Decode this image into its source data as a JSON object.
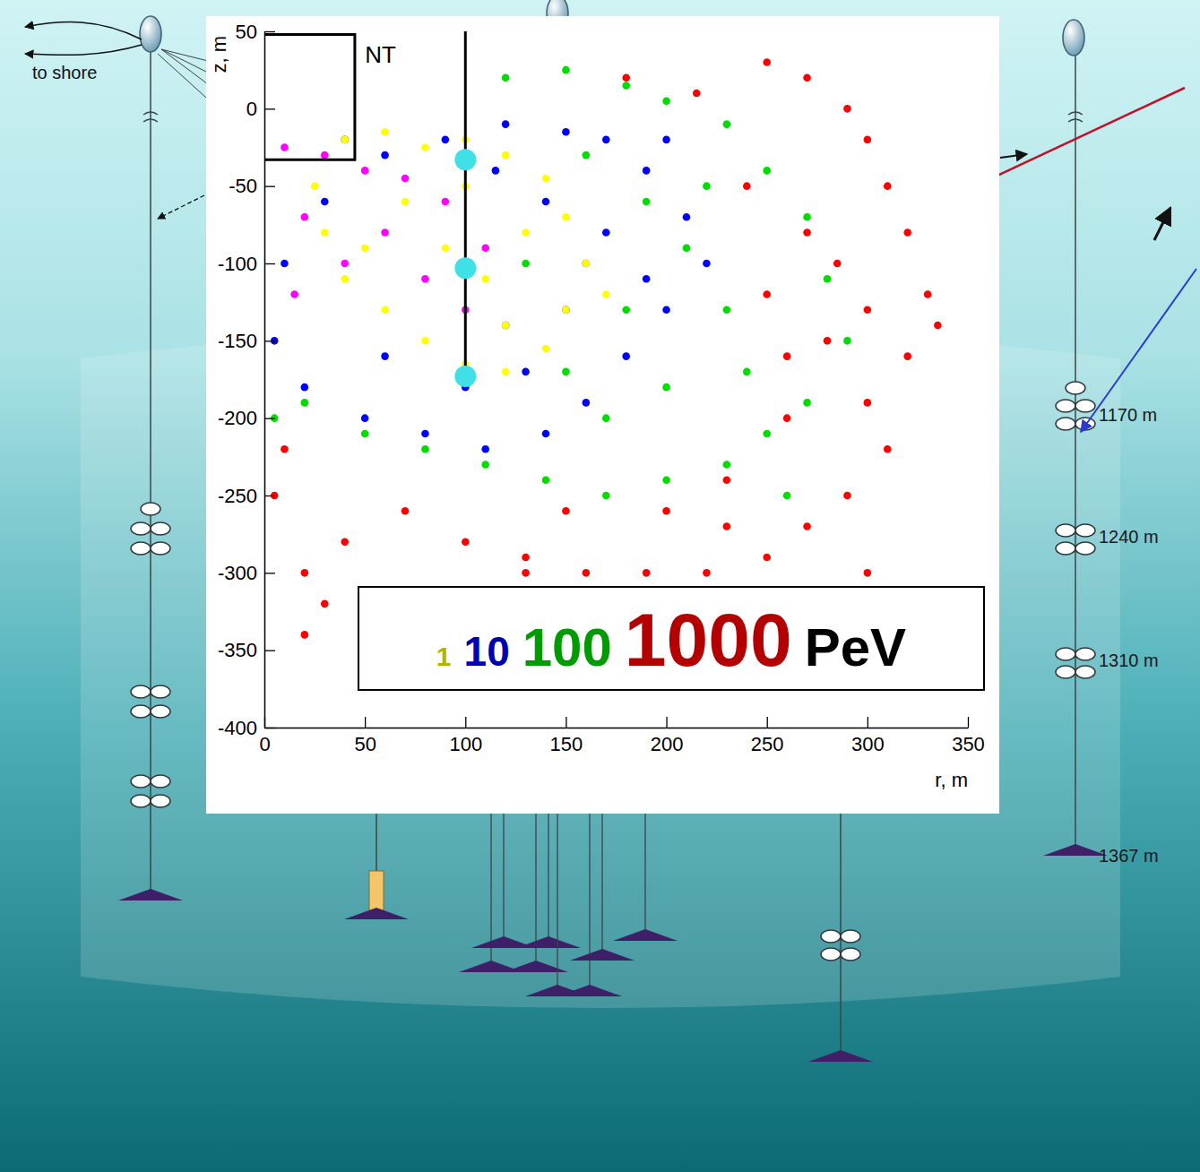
{
  "chart_data": {
    "type": "scatter",
    "xlabel": "r, m",
    "ylabel": "z, m",
    "xlim": [
      0,
      350
    ],
    "ylim": [
      -400,
      50
    ],
    "xticks": [
      0,
      50,
      100,
      150,
      200,
      250,
      300,
      350
    ],
    "yticks": [
      -400,
      -350,
      -300,
      -250,
      -200,
      -150,
      -100,
      -50,
      0,
      50
    ],
    "grid": false,
    "legend": "bottom",
    "annotations": [
      {
        "text": "NT",
        "x": 50,
        "y": 35
      },
      {
        "text": "PeV"
      }
    ],
    "series": [
      {
        "name": "1",
        "color": "#ffff00",
        "type": "scatter",
        "marker": "circle",
        "x": [
          40,
          60,
          80,
          100,
          120,
          140,
          150,
          160,
          150,
          140,
          120,
          100,
          80,
          60,
          40,
          30,
          25,
          70,
          90,
          110,
          130,
          50,
          100,
          120,
          170
        ],
        "y": [
          -20,
          -15,
          -25,
          -20,
          -30,
          -45,
          -70,
          -100,
          -130,
          -155,
          -170,
          -165,
          -150,
          -130,
          -110,
          -80,
          -50,
          -60,
          -90,
          -110,
          -80,
          -90,
          -50,
          -140,
          -120
        ]
      },
      {
        "name": "10",
        "color": "#0000ff",
        "type": "scatter",
        "marker": "circle",
        "x": [
          60,
          90,
          120,
          150,
          170,
          190,
          210,
          220,
          200,
          180,
          160,
          140,
          110,
          80,
          50,
          20,
          5,
          10,
          30,
          40,
          140,
          160,
          120,
          170,
          190,
          100,
          60,
          130,
          150,
          200,
          115
        ],
        "y": [
          -30,
          -20,
          -10,
          -15,
          -20,
          -40,
          -70,
          -100,
          -130,
          -160,
          -190,
          -210,
          -220,
          -210,
          -200,
          -180,
          -150,
          -100,
          -60,
          -20,
          -60,
          -100,
          -140,
          -80,
          -110,
          -180,
          -160,
          -170,
          -130,
          -20,
          -40
        ]
      },
      {
        "name": "100",
        "color": "#00dd00",
        "type": "scatter",
        "marker": "circle",
        "x": [
          120,
          150,
          180,
          200,
          230,
          250,
          270,
          280,
          290,
          270,
          250,
          230,
          200,
          170,
          140,
          110,
          80,
          50,
          20,
          5,
          160,
          190,
          210,
          230,
          180,
          150,
          200,
          240,
          130,
          220,
          170,
          260
        ],
        "y": [
          20,
          25,
          15,
          5,
          -10,
          -40,
          -70,
          -110,
          -150,
          -190,
          -210,
          -230,
          -240,
          -250,
          -240,
          -230,
          -220,
          -210,
          -190,
          -200,
          -30,
          -60,
          -90,
          -130,
          -130,
          -170,
          -180,
          -170,
          -100,
          -50,
          -200,
          -250
        ]
      },
      {
        "name": "1000",
        "color": "#ff0000",
        "type": "scatter",
        "marker": "circle",
        "x": [
          250,
          270,
          290,
          300,
          310,
          320,
          330,
          335,
          320,
          300,
          310,
          290,
          270,
          250,
          220,
          190,
          160,
          130,
          100,
          70,
          40,
          20,
          5,
          30,
          130,
          230,
          260,
          280,
          250,
          270,
          240,
          285,
          300,
          260,
          230,
          200,
          150,
          300,
          10,
          20,
          180,
          215
        ],
        "y": [
          30,
          20,
          0,
          -20,
          -50,
          -80,
          -120,
          -140,
          -160,
          -190,
          -220,
          -250,
          -270,
          -290,
          -300,
          -300,
          -300,
          -290,
          -280,
          -260,
          -280,
          -300,
          -250,
          -320,
          -300,
          -240,
          -200,
          -150,
          -120,
          -80,
          -50,
          -100,
          -130,
          -160,
          -270,
          -260,
          -260,
          -300,
          -220,
          -340,
          20,
          10
        ]
      },
      {
        "color": "#ff00ff",
        "type": "scatter",
        "marker": "circle",
        "x": [
          10,
          30,
          50,
          20,
          40,
          60,
          80,
          100,
          90,
          110,
          15,
          70
        ],
        "y": [
          -25,
          -30,
          -40,
          -70,
          -100,
          -80,
          -110,
          -130,
          -60,
          -90,
          -120,
          -45
        ]
      },
      {
        "color": "#000000",
        "type": "line",
        "line_style": "solid",
        "x": [
          100,
          100,
          100,
          100
        ],
        "y": [
          50,
          -33,
          -103,
          -173
        ]
      },
      {
        "color": "#000000",
        "type": "line",
        "line_style": "solid",
        "x": [
          0,
          45,
          45,
          0
        ],
        "y": [
          48,
          48,
          -33,
          -33
        ]
      },
      {
        "color": "#3fe0e6",
        "type": "scatter",
        "marker": "large-circle",
        "x": [
          100,
          100,
          100
        ],
        "y": [
          -33,
          -103,
          -173
        ]
      }
    ]
  },
  "diagram": {
    "to_shore": "to shore",
    "depths": [
      "1170 m",
      "1240 m",
      "1310 m",
      "1367 m"
    ]
  }
}
